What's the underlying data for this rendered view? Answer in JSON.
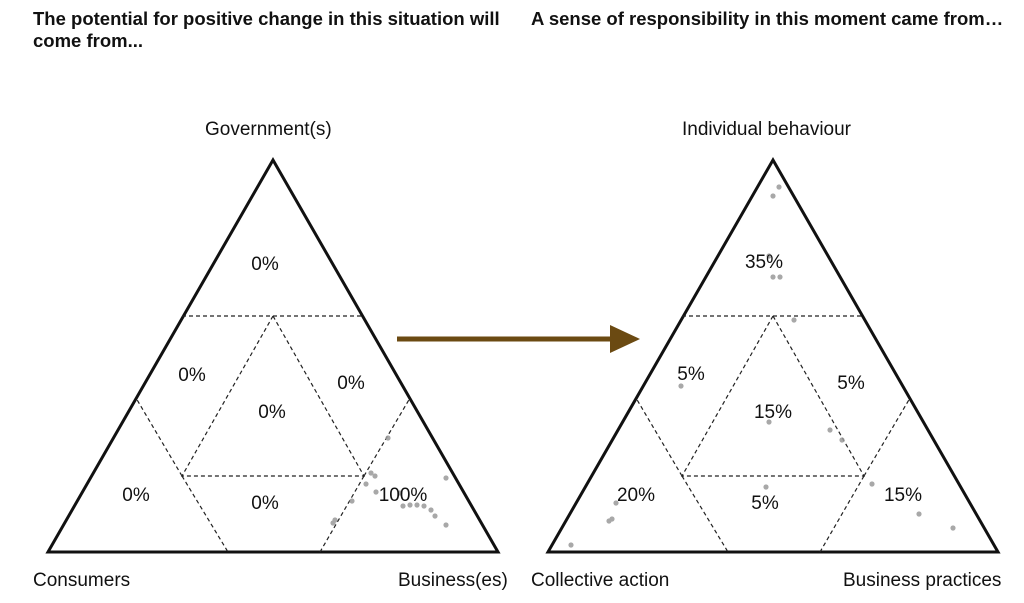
{
  "left_panel": {
    "title": "The potential for positive change in this situation will come from...",
    "top_label": "Government(s)",
    "bottom_left_label": "Consumers",
    "bottom_right_label": "Business(es)",
    "regions": {
      "top": "0%",
      "mid_left": "0%",
      "center": "0%",
      "mid_right": "0%",
      "bottom_left": "0%",
      "bottom_middle": "0%",
      "bottom_right": "100%"
    }
  },
  "right_panel": {
    "title": "A sense of responsibility in this moment came from…",
    "top_label": "Individual behaviour",
    "bottom_left_label": "Collective action",
    "bottom_right_label": "Business practices",
    "regions": {
      "top": "35%",
      "mid_left": "5%",
      "center": "15%",
      "mid_right": "5%",
      "bottom_left": "20%",
      "bottom_middle": "5%",
      "bottom_right": "15%"
    }
  },
  "arrow_color": "#6b4a12",
  "dot_color": "#999999"
}
